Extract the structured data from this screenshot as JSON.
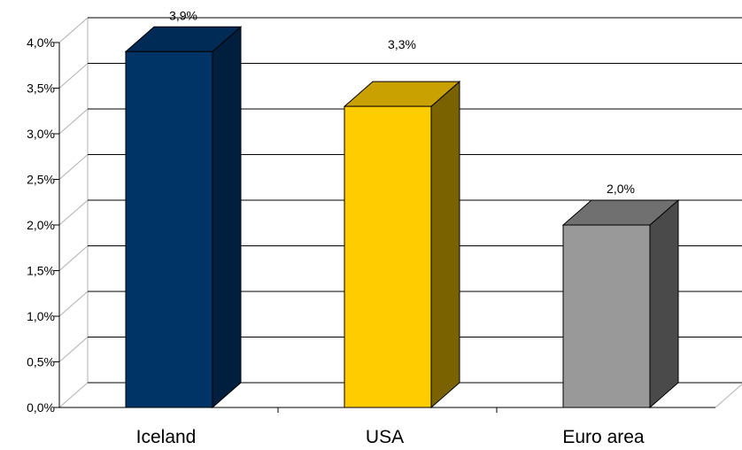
{
  "chart_data": {
    "type": "bar",
    "style": "3d-column",
    "categories": [
      "Iceland",
      "USA",
      "Euro area"
    ],
    "values": [
      3.9,
      3.3,
      2.0
    ],
    "data_labels": [
      "3,9%",
      "3,3%",
      "2,0%"
    ],
    "ylim": [
      0,
      4.0
    ],
    "yticks": [
      "0,0%",
      "0,5%",
      "1,0%",
      "1,5%",
      "2,0%",
      "2,5%",
      "3,0%",
      "3,5%",
      "4,0%"
    ],
    "grid": true,
    "legend": "none",
    "colors": [
      {
        "front": "#003366",
        "side": "#001f3f",
        "top": "#002b57"
      },
      {
        "front": "#ffcc00",
        "side": "#7a6200",
        "top": "#c9a100"
      },
      {
        "front": "#999999",
        "side": "#4a4a4a",
        "top": "#707070"
      }
    ]
  }
}
